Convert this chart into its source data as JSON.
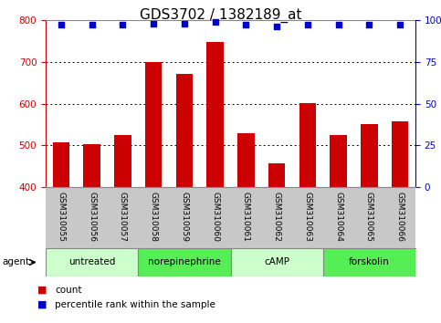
{
  "title": "GDS3702 / 1382189_at",
  "samples": [
    "GSM310055",
    "GSM310056",
    "GSM310057",
    "GSM310058",
    "GSM310059",
    "GSM310060",
    "GSM310061",
    "GSM310062",
    "GSM310063",
    "GSM310064",
    "GSM310065",
    "GSM310066"
  ],
  "counts": [
    507,
    503,
    524,
    700,
    672,
    748,
    530,
    456,
    602,
    525,
    551,
    557
  ],
  "percentile_ranks": [
    97,
    97,
    97,
    98,
    98,
    99,
    97,
    96,
    97,
    97,
    97,
    97
  ],
  "ylim": [
    400,
    800
  ],
  "y2lim": [
    0,
    100
  ],
  "yticks": [
    400,
    500,
    600,
    700,
    800
  ],
  "y2ticks": [
    0,
    25,
    50,
    75,
    100
  ],
  "y2ticklabels": [
    "0",
    "25",
    "50",
    "75",
    "100%"
  ],
  "bar_color": "#cc0000",
  "dot_color": "#0000cc",
  "grid_color": "#000000",
  "bg_color": "#ffffff",
  "tick_label_area_color": "#c8c8c8",
  "agent_groups": [
    {
      "label": "untreated",
      "start": 0,
      "end": 3,
      "color": "#ccffcc"
    },
    {
      "label": "norepinephrine",
      "start": 3,
      "end": 6,
      "color": "#55ee55"
    },
    {
      "label": "cAMP",
      "start": 6,
      "end": 9,
      "color": "#ccffcc"
    },
    {
      "label": "forskolin",
      "start": 9,
      "end": 12,
      "color": "#55ee55"
    }
  ],
  "legend_items": [
    {
      "color": "#cc0000",
      "label": "count"
    },
    {
      "color": "#0000cc",
      "label": "percentile rank within the sample"
    }
  ],
  "left_ylabel_color": "#cc0000",
  "right_ylabel_color": "#0000cc",
  "title_fontsize": 11,
  "tick_fontsize": 7.5,
  "sample_fontsize": 6.5,
  "agent_label": "agent"
}
